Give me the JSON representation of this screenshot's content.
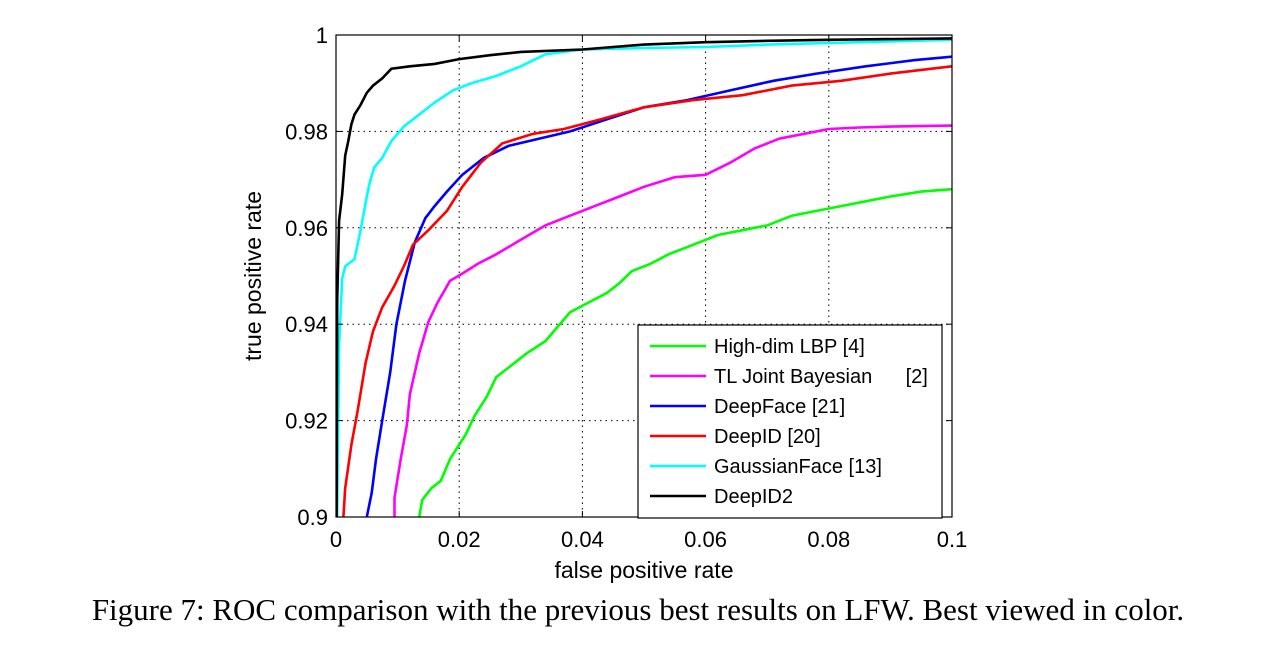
{
  "caption": "Figure 7: ROC comparison with the previous best results on LFW. Best viewed in color.",
  "chart_data": {
    "type": "line",
    "title": "",
    "xlabel": "false positive rate",
    "ylabel": "true positive rate",
    "xlim": [
      0,
      0.1
    ],
    "ylim": [
      0.9,
      1
    ],
    "xticks": [
      0,
      0.02,
      0.04,
      0.06,
      0.08,
      0.1
    ],
    "xtick_labels": [
      "0",
      "0.02",
      "0.04",
      "0.06",
      "0.08",
      "0.1"
    ],
    "yticks": [
      0.9,
      0.92,
      0.94,
      0.96,
      0.98,
      1
    ],
    "ytick_labels": [
      "0.9",
      "0.92",
      "0.94",
      "0.96",
      "0.98",
      "1"
    ],
    "grid": true,
    "legend_position": "bottom-right",
    "series": [
      {
        "name": "High-dim LBP [4]",
        "color": "#00ff00",
        "points": [
          [
            0.0135,
            0.9
          ],
          [
            0.014,
            0.9035
          ],
          [
            0.0155,
            0.906
          ],
          [
            0.017,
            0.9075
          ],
          [
            0.0185,
            0.912
          ],
          [
            0.0195,
            0.914
          ],
          [
            0.021,
            0.917
          ],
          [
            0.0225,
            0.921
          ],
          [
            0.0245,
            0.925
          ],
          [
            0.026,
            0.929
          ],
          [
            0.028,
            0.931
          ],
          [
            0.031,
            0.934
          ],
          [
            0.034,
            0.9365
          ],
          [
            0.036,
            0.9395
          ],
          [
            0.038,
            0.9425
          ],
          [
            0.041,
            0.9445
          ],
          [
            0.044,
            0.9465
          ],
          [
            0.046,
            0.9485
          ],
          [
            0.048,
            0.951
          ],
          [
            0.051,
            0.9525
          ],
          [
            0.054,
            0.9545
          ],
          [
            0.058,
            0.9565
          ],
          [
            0.062,
            0.9585
          ],
          [
            0.066,
            0.9595
          ],
          [
            0.07,
            0.9605
          ],
          [
            0.074,
            0.9625
          ],
          [
            0.078,
            0.9635
          ],
          [
            0.082,
            0.9645
          ],
          [
            0.086,
            0.9655
          ],
          [
            0.09,
            0.9665
          ],
          [
            0.095,
            0.9675
          ],
          [
            0.1,
            0.968
          ]
        ]
      },
      {
        "name": "TL Joint Bayesian      [2]",
        "color": "#ff00ff",
        "points": [
          [
            0.0095,
            0.9
          ],
          [
            0.0095,
            0.904
          ],
          [
            0.0105,
            0.912
          ],
          [
            0.0115,
            0.919
          ],
          [
            0.012,
            0.9255
          ],
          [
            0.0135,
            0.934
          ],
          [
            0.015,
            0.9405
          ],
          [
            0.0165,
            0.9445
          ],
          [
            0.0185,
            0.949
          ],
          [
            0.0205,
            0.9505
          ],
          [
            0.023,
            0.9525
          ],
          [
            0.026,
            0.9545
          ],
          [
            0.03,
            0.9575
          ],
          [
            0.034,
            0.9605
          ],
          [
            0.038,
            0.9625
          ],
          [
            0.042,
            0.9645
          ],
          [
            0.046,
            0.9665
          ],
          [
            0.05,
            0.9685
          ],
          [
            0.055,
            0.9705
          ],
          [
            0.06,
            0.971
          ],
          [
            0.064,
            0.9735
          ],
          [
            0.068,
            0.9765
          ],
          [
            0.072,
            0.9785
          ],
          [
            0.076,
            0.9795
          ],
          [
            0.08,
            0.9805
          ],
          [
            0.085,
            0.9808
          ],
          [
            0.09,
            0.981
          ],
          [
            0.1,
            0.9812
          ]
        ]
      },
      {
        "name": "DeepFace [21]",
        "color": "#0000ff",
        "points": [
          [
            0.005,
            0.9
          ],
          [
            0.0058,
            0.905
          ],
          [
            0.0065,
            0.912
          ],
          [
            0.0075,
            0.92
          ],
          [
            0.0088,
            0.93
          ],
          [
            0.0098,
            0.94
          ],
          [
            0.0112,
            0.949
          ],
          [
            0.0128,
            0.957
          ],
          [
            0.0145,
            0.962
          ],
          [
            0.016,
            0.9645
          ],
          [
            0.018,
            0.9675
          ],
          [
            0.0205,
            0.971
          ],
          [
            0.024,
            0.9745
          ],
          [
            0.028,
            0.977
          ],
          [
            0.033,
            0.9785
          ],
          [
            0.038,
            0.98
          ],
          [
            0.044,
            0.9825
          ],
          [
            0.05,
            0.985
          ],
          [
            0.057,
            0.9865
          ],
          [
            0.064,
            0.9885
          ],
          [
            0.071,
            0.9905
          ],
          [
            0.078,
            0.992
          ],
          [
            0.086,
            0.9935
          ],
          [
            0.094,
            0.9948
          ],
          [
            0.1,
            0.9955
          ]
        ]
      },
      {
        "name": "DeepID [20]",
        "color": "#ff0000",
        "points": [
          [
            0.0012,
            0.9
          ],
          [
            0.0015,
            0.906
          ],
          [
            0.0025,
            0.915
          ],
          [
            0.0035,
            0.922
          ],
          [
            0.0048,
            0.932
          ],
          [
            0.006,
            0.9385
          ],
          [
            0.0075,
            0.9435
          ],
          [
            0.0095,
            0.948
          ],
          [
            0.011,
            0.952
          ],
          [
            0.0125,
            0.9565
          ],
          [
            0.015,
            0.9595
          ],
          [
            0.018,
            0.9635
          ],
          [
            0.0205,
            0.9685
          ],
          [
            0.0235,
            0.9735
          ],
          [
            0.027,
            0.9775
          ],
          [
            0.032,
            0.9795
          ],
          [
            0.037,
            0.9805
          ],
          [
            0.043,
            0.9825
          ],
          [
            0.05,
            0.985
          ],
          [
            0.058,
            0.9865
          ],
          [
            0.066,
            0.9875
          ],
          [
            0.074,
            0.9895
          ],
          [
            0.082,
            0.9905
          ],
          [
            0.09,
            0.992
          ],
          [
            0.1,
            0.9935
          ]
        ]
      },
      {
        "name": "GaussianFace [13]",
        "color": "#00ffff",
        "points": [
          [
            0.0002,
            0.9
          ],
          [
            0.0005,
            0.936
          ],
          [
            0.001,
            0.9495
          ],
          [
            0.0015,
            0.952
          ],
          [
            0.003,
            0.9535
          ],
          [
            0.004,
            0.9595
          ],
          [
            0.005,
            0.9665
          ],
          [
            0.0055,
            0.9695
          ],
          [
            0.0062,
            0.9725
          ],
          [
            0.0075,
            0.9745
          ],
          [
            0.009,
            0.978
          ],
          [
            0.011,
            0.981
          ],
          [
            0.0135,
            0.9835
          ],
          [
            0.016,
            0.986
          ],
          [
            0.019,
            0.9885
          ],
          [
            0.022,
            0.99
          ],
          [
            0.026,
            0.9915
          ],
          [
            0.03,
            0.9935
          ],
          [
            0.034,
            0.996
          ],
          [
            0.04,
            0.997
          ],
          [
            0.05,
            0.9973
          ],
          [
            0.06,
            0.9975
          ],
          [
            0.07,
            0.998
          ],
          [
            0.085,
            0.9985
          ],
          [
            0.1,
            0.999
          ]
        ]
      },
      {
        "name": "DeepID2",
        "color": "#000000",
        "points": [
          [
            0.0001,
            0.9
          ],
          [
            0.0002,
            0.945
          ],
          [
            0.0005,
            0.9615
          ],
          [
            0.001,
            0.967
          ],
          [
            0.0015,
            0.975
          ],
          [
            0.002,
            0.978
          ],
          [
            0.0025,
            0.9815
          ],
          [
            0.003,
            0.9835
          ],
          [
            0.004,
            0.9855
          ],
          [
            0.005,
            0.988
          ],
          [
            0.006,
            0.9895
          ],
          [
            0.0075,
            0.991
          ],
          [
            0.009,
            0.993
          ],
          [
            0.012,
            0.9935
          ],
          [
            0.016,
            0.994
          ],
          [
            0.02,
            0.995
          ],
          [
            0.025,
            0.9958
          ],
          [
            0.03,
            0.9965
          ],
          [
            0.04,
            0.997
          ],
          [
            0.05,
            0.998
          ],
          [
            0.06,
            0.9985
          ],
          [
            0.07,
            0.9988
          ],
          [
            0.08,
            0.999
          ],
          [
            0.1,
            0.9993
          ]
        ]
      }
    ]
  }
}
